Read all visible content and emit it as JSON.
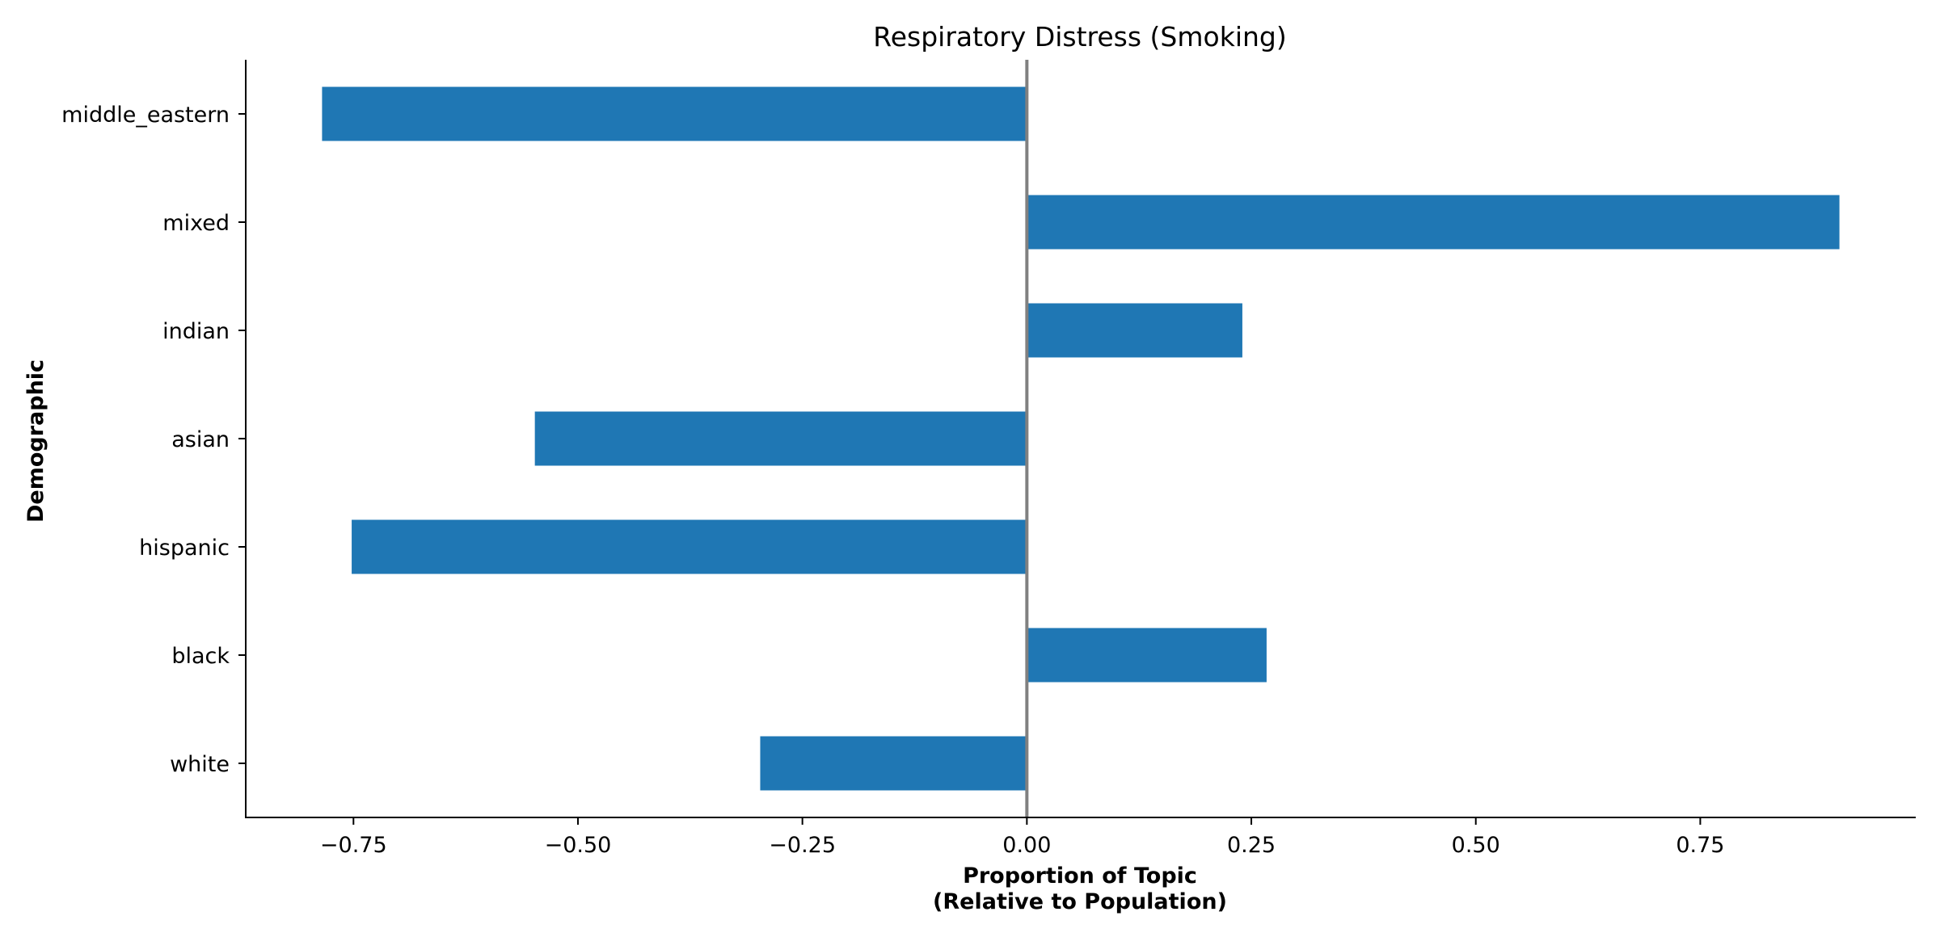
{
  "chart_data": {
    "type": "bar",
    "orientation": "horizontal",
    "title": "Respiratory Distress (Smoking)",
    "xlabel_lines": [
      "Proportion of Topic",
      "(Relative to Population)"
    ],
    "ylabel": "Demographic",
    "categories": [
      "middle_eastern",
      "mixed",
      "indian",
      "asian",
      "hispanic",
      "black",
      "white"
    ],
    "values": [
      -0.785,
      0.905,
      0.24,
      -0.548,
      -0.752,
      0.267,
      -0.297
    ],
    "xlim": [
      -0.87,
      0.99
    ],
    "xticks": [
      -0.75,
      -0.5,
      -0.25,
      0.0,
      0.25,
      0.5,
      0.75
    ],
    "xtick_labels": [
      "−0.75",
      "−0.50",
      "−0.25",
      "0.00",
      "0.25",
      "0.50",
      "0.75"
    ],
    "zero_line": true,
    "grid": false,
    "legend": "none",
    "bar_color": "#1f77b4",
    "zero_line_color": "#808080"
  }
}
